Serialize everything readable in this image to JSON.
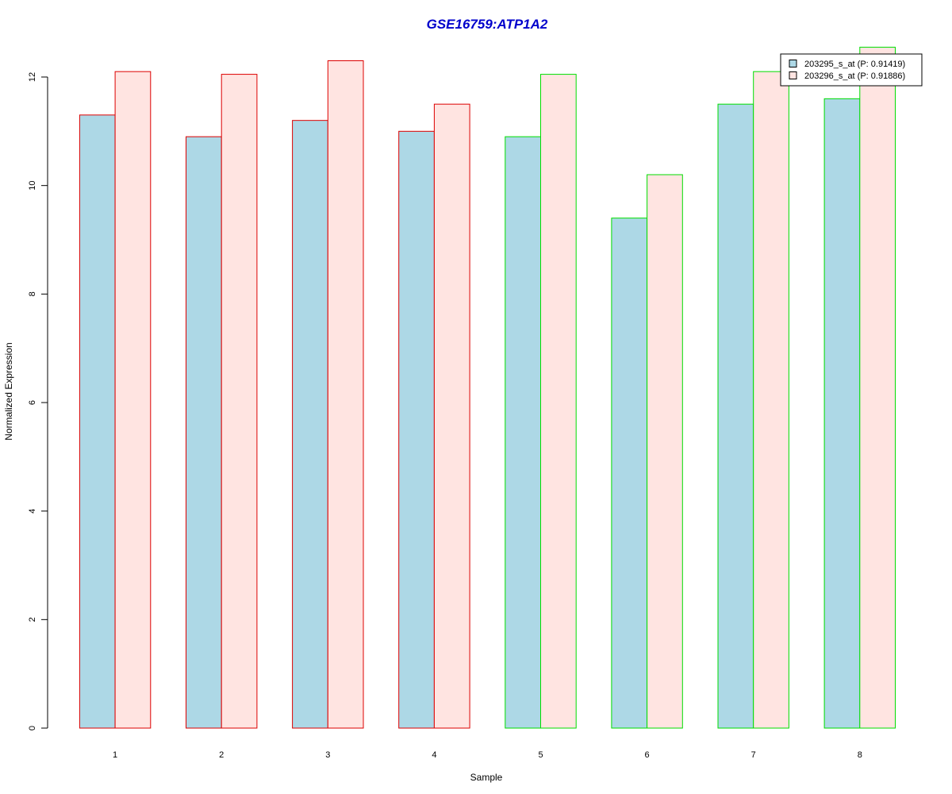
{
  "chart_data": {
    "type": "bar",
    "title": "GSE16759:ATP1A2",
    "xlabel": "Sample",
    "ylabel": "Normalized Expression",
    "categories": [
      "1",
      "2",
      "3",
      "4",
      "5",
      "6",
      "7",
      "8"
    ],
    "ylim": [
      0,
      12.6
    ],
    "yticks": [
      "0",
      "2",
      "4",
      "6",
      "8",
      "10",
      "12"
    ],
    "grid": false,
    "legend_position": "top-right",
    "series": [
      {
        "name": "203295_s_at (P: 0.91419)",
        "values": [
          11.3,
          10.9,
          11.2,
          11.0,
          10.9,
          9.4,
          11.5,
          11.6
        ],
        "fill": "#add8e6"
      },
      {
        "name": "203296_s_at (P: 0.91886)",
        "values": [
          12.1,
          12.05,
          12.3,
          11.5,
          12.05,
          10.2,
          12.1,
          12.55
        ],
        "fill": "#ffe4e1"
      }
    ],
    "group_borders": [
      "#dd0000",
      "#dd0000",
      "#dd0000",
      "#dd0000",
      "#00dd00",
      "#00dd00",
      "#00dd00",
      "#00dd00"
    ],
    "title_color": "#0000cc"
  }
}
